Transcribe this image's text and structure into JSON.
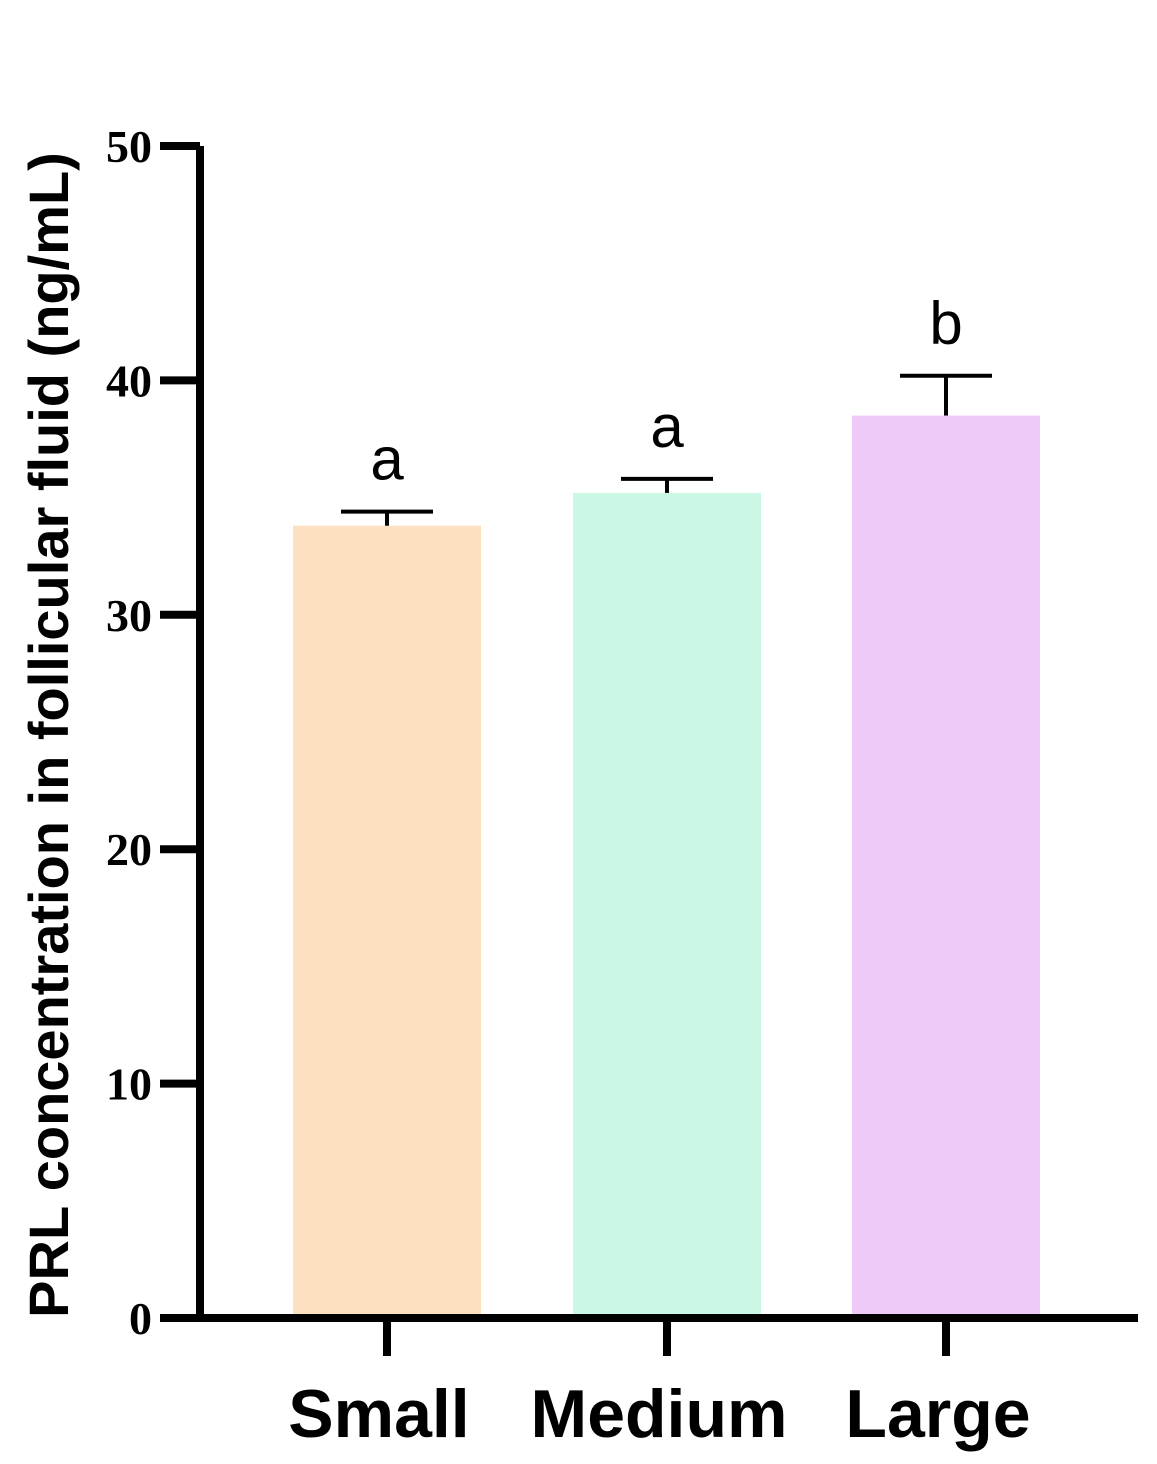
{
  "chart_data": {
    "type": "bar",
    "title": "",
    "xlabel": "",
    "ylabel": "PRL concentration in follicular fluid (ng/mL)",
    "ylim": [
      0,
      50
    ],
    "yticks": [
      0,
      10,
      20,
      30,
      40,
      50
    ],
    "categories": [
      "Small",
      "Medium",
      "Large"
    ],
    "values": [
      33.8,
      35.2,
      38.5
    ],
    "errors": [
      0.6,
      0.6,
      1.7
    ],
    "significance": [
      "a",
      "a",
      "b"
    ],
    "colors": [
      "#fde0c2",
      "#ccf7e5",
      "#eecbf7"
    ],
    "grid": false,
    "legend": "none"
  }
}
